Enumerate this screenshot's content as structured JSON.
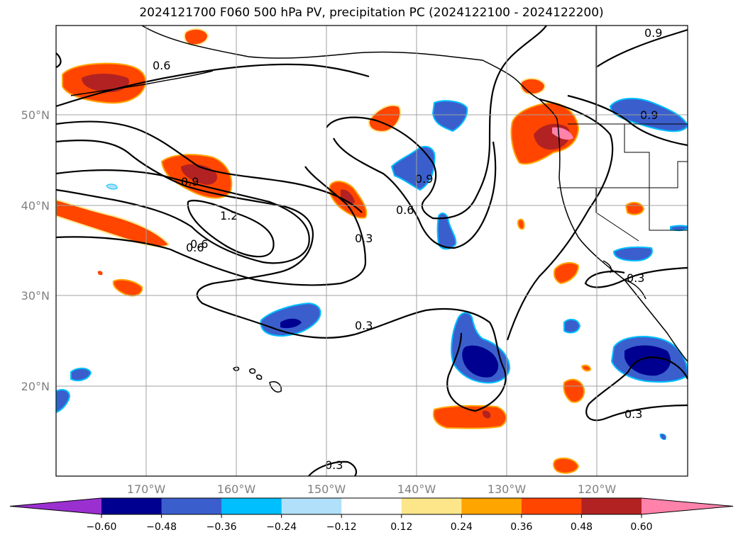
{
  "title": "2024121700 F060 500 hPa PV, precipitation PC (2024122100 - 2024122200)",
  "map": {
    "lat_labels": [
      "50°N",
      "40°N",
      "30°N",
      "20°N"
    ],
    "lon_labels": [
      "170°W",
      "160°W",
      "150°W",
      "140°W",
      "130°W",
      "120°W"
    ],
    "contour_labels": [
      "0.6",
      "0.9",
      "1.2",
      "0.9",
      "0.6",
      "0.3",
      "0.3",
      "0.9",
      "0.6",
      "0.9",
      "0.6",
      "0.3",
      "0.3",
      "0.3"
    ]
  },
  "colorbar": {
    "ticks": [
      "−0.60",
      "−0.48",
      "−0.36",
      "−0.24",
      "−0.12",
      "0.12",
      "0.24",
      "0.36",
      "0.48",
      "0.60"
    ],
    "colors": [
      "#9b30d0",
      "#000090",
      "#3a5fcd",
      "#00bfff",
      "#b0e0fa",
      "#ffffff",
      "#fde68a",
      "#ffa500",
      "#ff4500",
      "#b22222",
      "#ff82ab"
    ]
  }
}
